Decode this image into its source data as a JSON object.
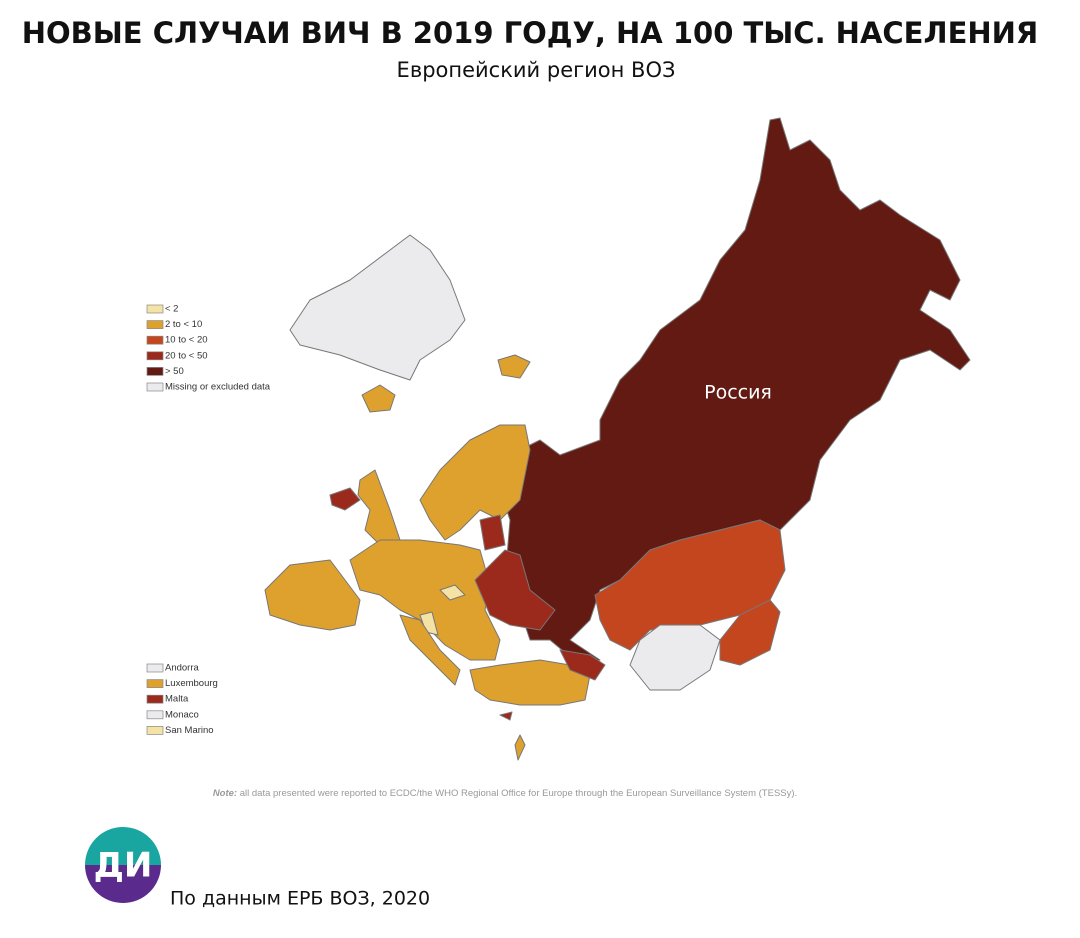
{
  "header": {
    "title": "НОВЫЕ СЛУЧАИ ВИЧ В 2019 ГОДУ, НА 100 ТЫС. НАСЕЛЕНИЯ",
    "subtitle": "Европейский регион ВОЗ"
  },
  "map": {
    "region_label": "Россия",
    "legend": [
      {
        "label": "< 2",
        "color": "#f5e3a6"
      },
      {
        "label": "2 to < 10",
        "color": "#dea12e"
      },
      {
        "label": "10 to < 20",
        "color": "#c4461e"
      },
      {
        "label": "20 to < 50",
        "color": "#9c2a1c"
      },
      {
        "label": "> 50",
        "color": "#621a13"
      },
      {
        "label": "Missing or excluded data",
        "color": "#ebebee"
      }
    ],
    "small_states": [
      {
        "label": "Andorra",
        "category": 5
      },
      {
        "label": "Luxembourg",
        "category": 1
      },
      {
        "label": "Malta",
        "category": 3
      },
      {
        "label": "Monaco",
        "category": 5
      },
      {
        "label": "San Marino",
        "category": 0
      }
    ],
    "note": {
      "label": "Note:",
      "text": "all data presented were reported to ECDC/the WHO Regional Office for Europe through the European Surveillance System (TESSy)."
    }
  },
  "footer": {
    "logo": "ДИ",
    "source": "По данным ЕРБ ВОЗ, 2020"
  }
}
